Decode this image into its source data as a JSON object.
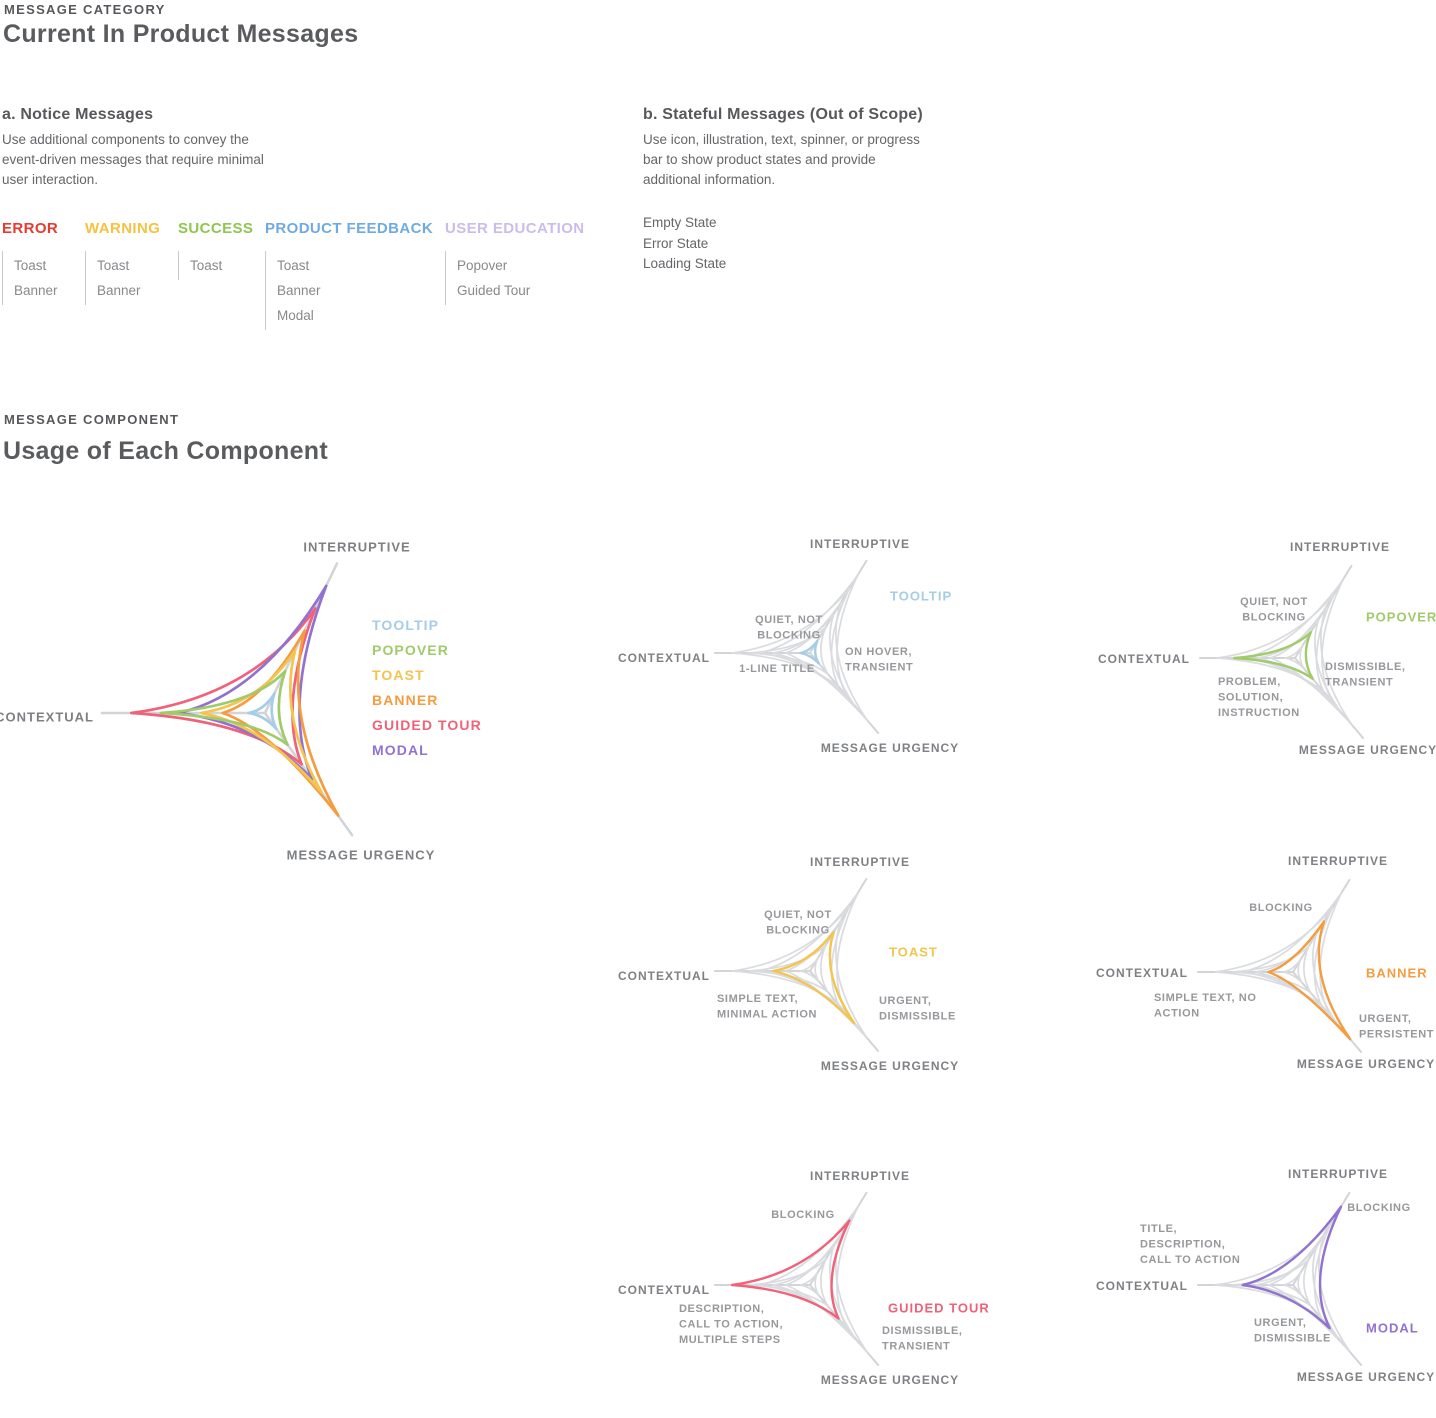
{
  "page": {
    "section1": {
      "eyebrow": "MESSAGE CATEGORY",
      "title": "Current In Product Messages",
      "notice": {
        "heading": "a. Notice Messages",
        "description": "Use additional components to convey the\nevent-driven messages that require minimal\nuser interaction.",
        "categories": [
          {
            "name": "ERROR",
            "color": "#E63B2E",
            "items": [
              "Toast",
              "Banner"
            ]
          },
          {
            "name": "WARNING",
            "color": "#F5C242",
            "items": [
              "Toast",
              "Banner"
            ]
          },
          {
            "name": "SUCCESS",
            "color": "#8DC750",
            "items": [
              "Toast"
            ]
          },
          {
            "name": "PRODUCT FEEDBACK",
            "color": "#6FABE0",
            "items": [
              "Toast",
              "Banner",
              "Modal"
            ]
          },
          {
            "name": "USER EDUCATION",
            "color": "#CDBCE9",
            "items": [
              "Popover",
              "Guided Tour"
            ]
          }
        ]
      },
      "stateful": {
        "heading": "b. Stateful Messages (Out of Scope)",
        "description": "Use icon, illustration, text, spinner, or progress\nbar to show product states and provide\nadditional information.",
        "items": [
          "Empty State",
          "Error State",
          "Loading State"
        ]
      }
    },
    "section2": {
      "eyebrow": "MESSAGE COMPONENT",
      "title": "Usage of Each Component"
    }
  },
  "chart_data": {
    "type": "radar",
    "title": "Usage of Each Component",
    "axes": {
      "top_right": "INTERRUPTIVE",
      "left": "CONTEXTUAL",
      "bottom_right": "MESSAGE URGENCY"
    },
    "scale_note": "values are relative reach along each axis, 0 = center, 1 = axis tip",
    "legend_position": "right of overview chart",
    "grid": false,
    "series": [
      {
        "name": "TOOLTIP",
        "color": "#A5CDE5",
        "values": {
          "contextual": 0.1,
          "interruptive": 0.13,
          "message_urgency": 0.13
        }
      },
      {
        "name": "POPOVER",
        "color": "#9FCB6A",
        "values": {
          "contextual": 0.64,
          "interruptive": 0.28,
          "message_urgency": 0.26
        }
      },
      {
        "name": "TOAST",
        "color": "#F3C44F",
        "values": {
          "contextual": 0.39,
          "interruptive": 0.42,
          "message_urgency": 0.65
        }
      },
      {
        "name": "BANNER",
        "color": "#F49C3F",
        "values": {
          "contextual": 0.26,
          "interruptive": 0.55,
          "message_urgency": 0.84
        }
      },
      {
        "name": "GUIDED TOUR",
        "color": "#F0617A",
        "values": {
          "contextual": 0.82,
          "interruptive": 0.7,
          "message_urgency": 0.42
        }
      },
      {
        "name": "MODAL",
        "color": "#9172CE",
        "values": {
          "contextual": 0.53,
          "interruptive": 0.85,
          "message_urgency": 0.54
        }
      }
    ],
    "details": [
      {
        "component": "TOOLTIP",
        "label_pos": {
          "x": 250,
          "y": 60
        },
        "annotations": [
          {
            "lines": [
              "QUIET, NOT",
              "BLOCKING"
            ],
            "anchor": "middle",
            "x": 149,
            "y": 84
          },
          {
            "lines": [
              "1-LINE TITLE"
            ],
            "anchor": "middle",
            "x": 137,
            "y": 133
          },
          {
            "lines": [
              "ON HOVER,",
              "TRANSIENT"
            ],
            "anchor": "start",
            "x": 205,
            "y": 116
          }
        ]
      },
      {
        "component": "POPOVER",
        "label_pos": {
          "x": 241,
          "y": 76
        },
        "annotations": [
          {
            "lines": [
              "QUIET, NOT",
              "BLOCKING"
            ],
            "anchor": "middle",
            "x": 149,
            "y": 61
          },
          {
            "lines": [
              "DISMISSIBLE,",
              "TRANSIENT"
            ],
            "anchor": "start",
            "x": 200,
            "y": 126
          },
          {
            "lines": [
              "PROBLEM,",
              "SOLUTION,",
              "INSTRUCTION"
            ],
            "anchor": "start",
            "x": 93,
            "y": 141
          }
        ]
      },
      {
        "component": "TOAST",
        "label_pos": {
          "x": 249,
          "y": 98
        },
        "annotations": [
          {
            "lines": [
              "QUIET, NOT",
              "BLOCKING"
            ],
            "anchor": "middle",
            "x": 158,
            "y": 61
          },
          {
            "lines": [
              "SIMPLE TEXT,",
              "MINIMAL ACTION"
            ],
            "anchor": "start",
            "x": 77,
            "y": 145
          },
          {
            "lines": [
              "URGENT,",
              "DISMISSIBLE"
            ],
            "anchor": "start",
            "x": 239,
            "y": 147
          }
        ]
      },
      {
        "component": "BANNER",
        "label_pos": {
          "x": 243,
          "y": 118
        },
        "annotations": [
          {
            "lines": [
              "BLOCKING"
            ],
            "anchor": "middle",
            "x": 158,
            "y": 53
          },
          {
            "lines": [
              "SIMPLE TEXT, NO",
              "ACTION"
            ],
            "anchor": "start",
            "x": 31,
            "y": 143
          },
          {
            "lines": [
              "URGENT,",
              "PERSISTENT"
            ],
            "anchor": "start",
            "x": 236,
            "y": 164
          }
        ]
      },
      {
        "component": "GUIDED TOUR",
        "label_pos": {
          "x": 248,
          "y": 140
        },
        "annotations": [
          {
            "lines": [
              "BLOCKING"
            ],
            "anchor": "middle",
            "x": 163,
            "y": 47
          },
          {
            "lines": [
              "DESCRIPTION,",
              "CALL TO ACTION,",
              "MULTIPLE STEPS"
            ],
            "anchor": "start",
            "x": 39,
            "y": 141
          },
          {
            "lines": [
              "DISMISSIBLE,",
              "TRANSIENT"
            ],
            "anchor": "start",
            "x": 242,
            "y": 163
          }
        ]
      },
      {
        "component": "MODAL",
        "label_pos": {
          "x": 243,
          "y": 160
        },
        "annotations": [
          {
            "lines": [
              "BLOCKING"
            ],
            "anchor": "middle",
            "x": 256,
            "y": 40
          },
          {
            "lines": [
              "TITLE,",
              "DESCRIPTION,",
              "CALL TO ACTION"
            ],
            "anchor": "start",
            "x": 17,
            "y": 61
          },
          {
            "lines": [
              "URGENT,",
              "DISMISSIBLE"
            ],
            "anchor": "start",
            "x": 131,
            "y": 155
          }
        ]
      }
    ]
  }
}
